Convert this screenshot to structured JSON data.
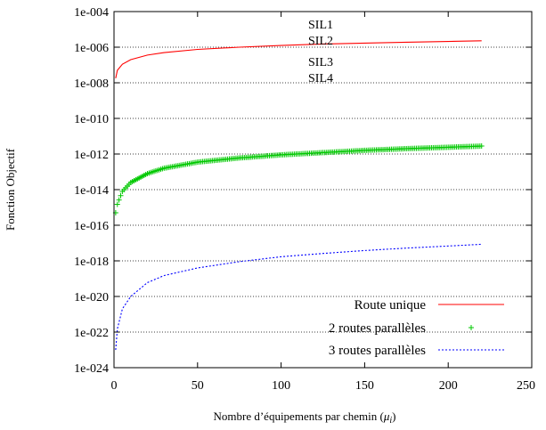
{
  "chart_data": {
    "type": "line",
    "title": "",
    "xlabel": "Nombre d’équipements par chemin (",
    "xlabel_math": "μ",
    "xlabel_sub": "i",
    "xlabel_end": ")",
    "ylabel": "Fonction Objectif",
    "xlim": [
      0,
      250
    ],
    "ylim": [
      1e-24,
      0.0001
    ],
    "yscale": "log",
    "xticks": [
      0,
      50,
      100,
      150,
      200,
      250
    ],
    "xtick_labels": [
      "0",
      "50",
      "100",
      "150",
      "200",
      "250"
    ],
    "yticks": [
      1e-24,
      1e-22,
      1e-20,
      1e-18,
      1e-16,
      1e-14,
      1e-12,
      1e-10,
      1e-08,
      1e-06,
      0.0001
    ],
    "ytick_labels": [
      "1e-024",
      "1e-022",
      "1e-020",
      "1e-018",
      "1e-016",
      "1e-014",
      "1e-012",
      "1e-010",
      "1e-008",
      "1e-006",
      "1e-004"
    ],
    "grid": "horizontal dotted lines at SIL thresholds",
    "sil_levels": [
      {
        "label": "SIL1",
        "value": 1e-05
      },
      {
        "label": "SIL2",
        "value": 1e-06
      },
      {
        "label": "SIL3",
        "value": 1e-07
      },
      {
        "label": "SIL4",
        "value": 1e-08
      }
    ],
    "legend_position": "bottom-right",
    "series": [
      {
        "name": "Route unique",
        "style": "solid-line",
        "color": "#ff0000",
        "x": [
          1,
          2,
          5,
          10,
          20,
          30,
          50,
          75,
          100,
          125,
          150,
          175,
          200,
          220
        ],
        "y": [
          1.8e-08,
          5e-08,
          1.1e-07,
          2e-07,
          3.6e-07,
          5e-07,
          7.5e-07,
          1e-06,
          1.25e-06,
          1.5e-06,
          1.7e-06,
          1.9e-06,
          2.1e-06,
          2.3e-06
        ]
      },
      {
        "name": "2 routes parallèles",
        "style": "plus-markers",
        "color": "#00c800",
        "x": [
          1,
          2,
          5,
          10,
          20,
          30,
          50,
          75,
          100,
          125,
          150,
          175,
          200,
          220
        ],
        "y": [
          5e-16,
          1.5e-15,
          8e-15,
          2.5e-14,
          8e-14,
          1.6e-13,
          3.5e-13,
          6e-13,
          9e-13,
          1.2e-12,
          1.6e-12,
          2e-12,
          2.4e-12,
          2.8e-12
        ]
      },
      {
        "name": "3 routes parallèles",
        "style": "dotted-line",
        "color": "#0000ff",
        "x": [
          1,
          2,
          5,
          10,
          20,
          30,
          50,
          75,
          100,
          125,
          150,
          175,
          200,
          220
        ],
        "y": [
          1e-23,
          1.5e-22,
          2e-21,
          1e-20,
          6e-20,
          1.5e-19,
          4e-19,
          9e-19,
          1.7e-18,
          2.6e-18,
          3.8e-18,
          5.2e-18,
          6.8e-18,
          8.5e-18
        ]
      }
    ]
  }
}
